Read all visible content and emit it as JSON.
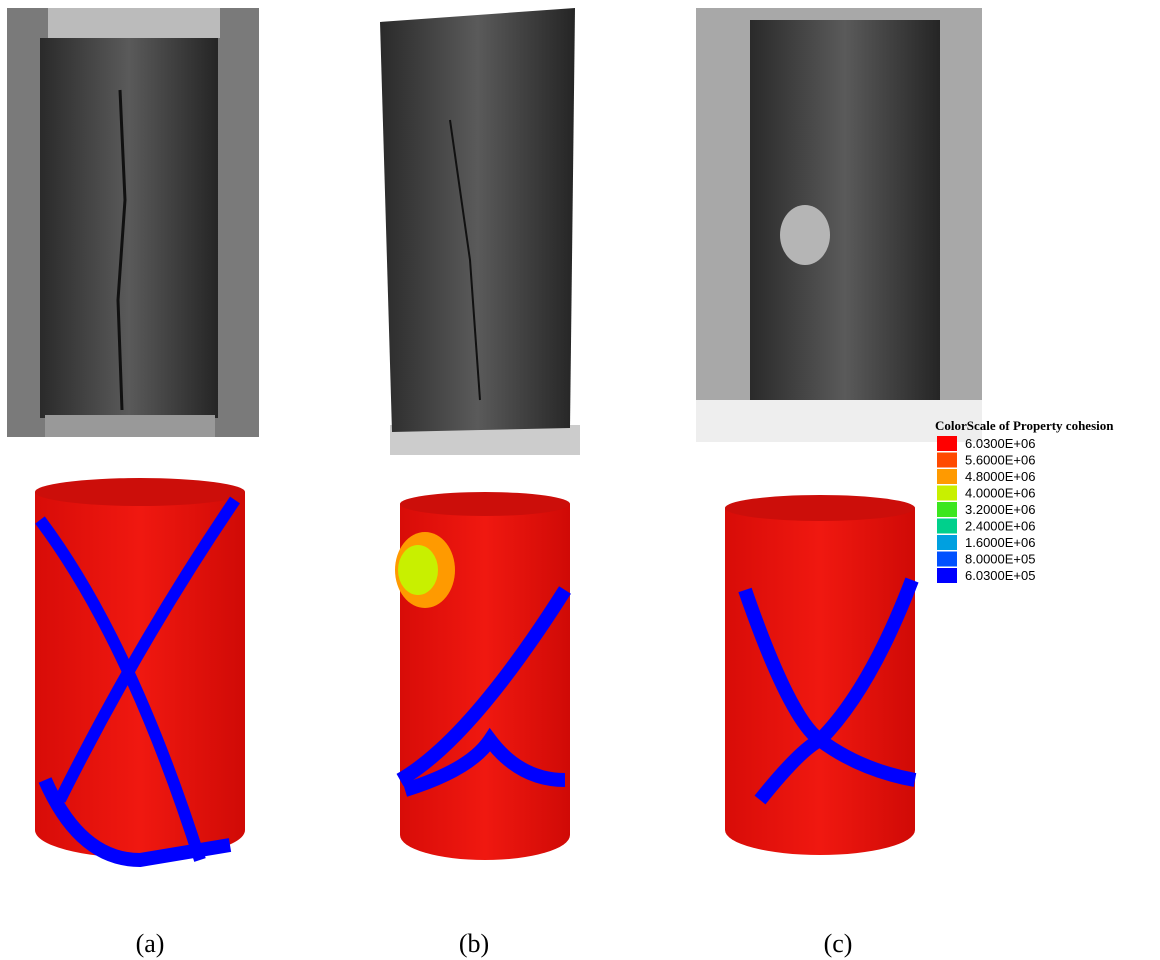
{
  "legend": {
    "title": "ColorScale of Property cohesion",
    "items": [
      {
        "label": "6.0300E+06",
        "color": "#ff0000"
      },
      {
        "label": "5.6000E+06",
        "color": "#ff4a00"
      },
      {
        "label": "4.8000E+06",
        "color": "#ff9a00"
      },
      {
        "label": "4.0000E+06",
        "color": "#c8f000"
      },
      {
        "label": "3.2000E+06",
        "color": "#3ce61e"
      },
      {
        "label": "2.4000E+06",
        "color": "#00d08c"
      },
      {
        "label": "1.6000E+06",
        "color": "#00a0e0"
      },
      {
        "label": "8.0000E+05",
        "color": "#0050ff"
      },
      {
        "label": "6.0300E+05",
        "color": "#0000ff"
      }
    ]
  },
  "captions": [
    "(a)",
    "(b)",
    "(c)"
  ]
}
